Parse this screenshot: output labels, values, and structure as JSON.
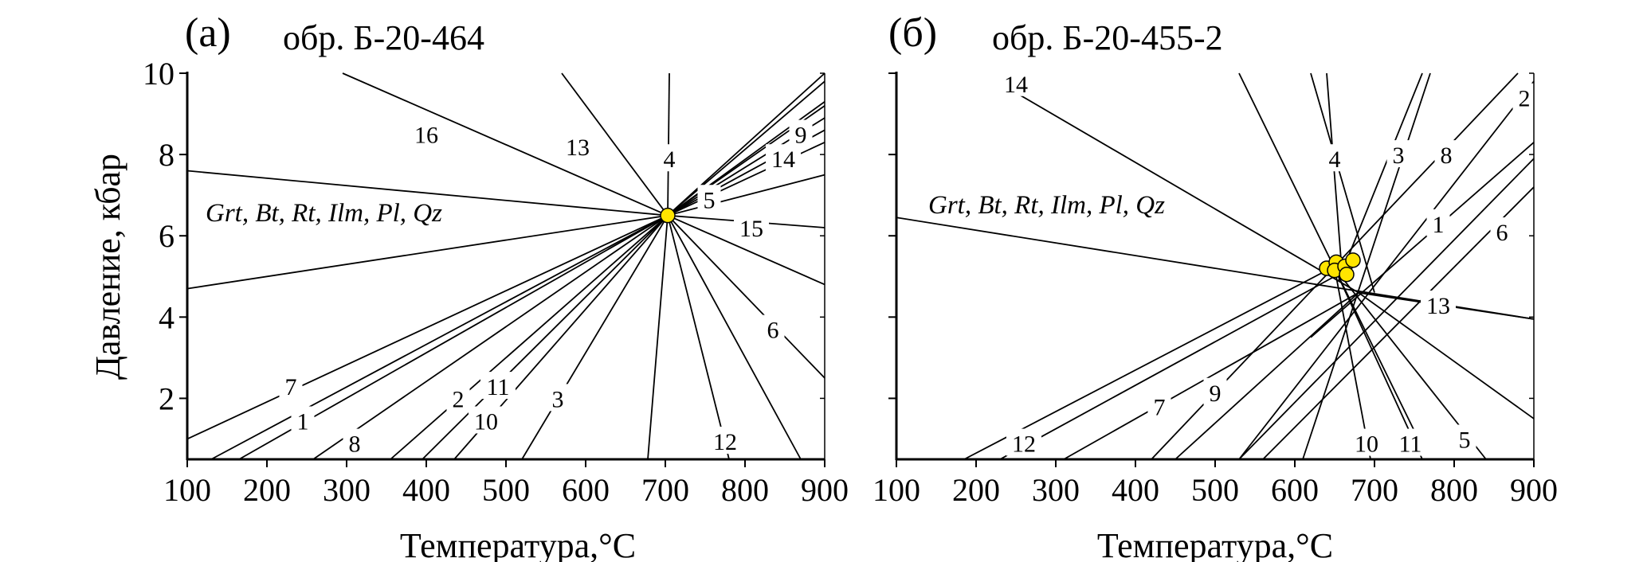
{
  "ylabel": "Давление, кбар",
  "xlabel": "Температура,°C",
  "xticks": [
    "100",
    "200",
    "300",
    "400",
    "500",
    "600",
    "700",
    "800",
    "900"
  ],
  "yticks": [
    "2",
    "4",
    "6",
    "8",
    "10"
  ],
  "point_color": "#ffe500",
  "chart_data": [
    {
      "type": "scatter",
      "panel": "(а)",
      "title": "обр. Б-20-464",
      "assemblage": "Grt, Bt, Rt, Ilm, Pl, Qz",
      "xlim": [
        100,
        900
      ],
      "ylim": [
        0.5,
        10
      ],
      "points": [
        {
          "x": 703,
          "y": 6.5
        }
      ],
      "reactions": [
        {
          "label": "16",
          "from": [
            295,
            10
          ],
          "to": [
            703,
            6.5
          ],
          "lx": 400,
          "ly": 8.5
        },
        {
          "label": "13",
          "from": [
            570,
            10
          ],
          "to": [
            703,
            6.5
          ],
          "lx": 590,
          "ly": 8.2
        },
        {
          "label": "4",
          "from": [
            705,
            10
          ],
          "to": [
            703,
            6.5
          ],
          "lx": 705,
          "ly": 7.9
        },
        {
          "label": "",
          "from": [
            100,
            7.6
          ],
          "to": [
            703,
            6.5
          ]
        },
        {
          "label": "",
          "from": [
            100,
            4.7
          ],
          "to": [
            703,
            6.5
          ]
        },
        {
          "label": "9",
          "from": [
            703,
            6.5
          ],
          "to": [
            900,
            9.3
          ],
          "lx": 870,
          "ly": 8.5
        },
        {
          "label": "",
          "from": [
            703,
            6.5
          ],
          "to": [
            900,
            10
          ]
        },
        {
          "label": "",
          "from": [
            703,
            6.5
          ],
          "to": [
            900,
            9.8
          ]
        },
        {
          "label": "",
          "from": [
            703,
            6.5
          ],
          "to": [
            900,
            9.2
          ]
        },
        {
          "label": "",
          "from": [
            703,
            6.5
          ],
          "to": [
            900,
            8.9
          ]
        },
        {
          "label": "14",
          "from": [
            703,
            6.5
          ],
          "to": [
            900,
            8.6
          ],
          "lx": 848,
          "ly": 7.9
        },
        {
          "label": "",
          "from": [
            703,
            6.5
          ],
          "to": [
            900,
            8.3
          ]
        },
        {
          "label": "5",
          "from": [
            703,
            6.5
          ],
          "to": [
            900,
            7.5
          ],
          "lx": 755,
          "ly": 6.9
        },
        {
          "label": "15",
          "from": [
            703,
            6.5
          ],
          "to": [
            900,
            6.2
          ],
          "lx": 808,
          "ly": 6.2
        },
        {
          "label": "",
          "from": [
            703,
            6.5
          ],
          "to": [
            900,
            4.8
          ]
        },
        {
          "label": "6",
          "from": [
            703,
            6.5
          ],
          "to": [
            900,
            2.5
          ],
          "lx": 835,
          "ly": 3.7
        },
        {
          "label": "",
          "from": [
            703,
            6.5
          ],
          "to": [
            870,
            0.5
          ]
        },
        {
          "label": "12",
          "from": [
            703,
            6.5
          ],
          "to": [
            780,
            0.5
          ],
          "lx": 775,
          "ly": 0.95
        },
        {
          "label": "",
          "from": [
            703,
            6.5
          ],
          "to": [
            678,
            0.5
          ]
        },
        {
          "label": "3",
          "from": [
            703,
            6.5
          ],
          "to": [
            520,
            0.5
          ],
          "lx": 565,
          "ly": 2.0
        },
        {
          "label": "10",
          "from": [
            703,
            6.5
          ],
          "to": [
            435,
            0.5
          ],
          "lx": 475,
          "ly": 1.45
        },
        {
          "label": "11",
          "from": [
            703,
            6.5
          ],
          "to": [
            395,
            0.5
          ],
          "lx": 490,
          "ly": 2.3
        },
        {
          "label": "2",
          "from": [
            703,
            6.5
          ],
          "to": [
            355,
            0.5
          ],
          "lx": 440,
          "ly": 2.0
        },
        {
          "label": "8",
          "from": [
            703,
            6.5
          ],
          "to": [
            258,
            0.5
          ],
          "lx": 310,
          "ly": 0.9
        },
        {
          "label": "1",
          "from": [
            703,
            6.5
          ],
          "to": [
            165,
            0.5
          ],
          "lx": 245,
          "ly": 1.45
        },
        {
          "label": "",
          "from": [
            703,
            6.5
          ],
          "to": [
            130,
            0.5
          ]
        },
        {
          "label": "7",
          "from": [
            703,
            6.5
          ],
          "to": [
            100,
            1.0
          ],
          "lx": 230,
          "ly": 2.3
        }
      ]
    },
    {
      "type": "scatter",
      "panel": "(б)",
      "title": "обр. Б-20-455-2",
      "assemblage": "Grt, Bt, Rt, Ilm, Pl, Qz",
      "xlim": [
        100,
        900
      ],
      "ylim": [
        0.5,
        10
      ],
      "points": [
        {
          "x": 640,
          "y": 5.2
        },
        {
          "x": 652,
          "y": 5.35
        },
        {
          "x": 650,
          "y": 5.15
        },
        {
          "x": 663,
          "y": 5.25
        },
        {
          "x": 673,
          "y": 5.4
        },
        {
          "x": 665,
          "y": 5.05
        }
      ],
      "reactions": [
        {
          "label": "14",
          "from": [
            230,
            9.75
          ],
          "to": [
            680,
            4.6
          ],
          "lx": 250,
          "ly": 9.75
        },
        {
          "label": "",
          "from": [
            100,
            6.45
          ],
          "to": [
            900,
            3.95
          ]
        },
        {
          "label": "13",
          "from": [
            680,
            4.6
          ],
          "to": [
            900,
            3.95
          ],
          "lx": 780,
          "ly": 4.3
        },
        {
          "label": "2",
          "from": [
            530,
            0.5
          ],
          "to": [
            900,
            9.8
          ],
          "lx": 888,
          "ly": 9.4
        },
        {
          "label": "8",
          "from": [
            420,
            0.5
          ],
          "to": [
            880,
            10
          ],
          "lx": 790,
          "ly": 8.0
        },
        {
          "label": "1",
          "from": [
            620,
            3.5
          ],
          "to": [
            900,
            8.3
          ],
          "lx": 780,
          "ly": 6.3
        },
        {
          "label": "6",
          "from": [
            560,
            0.5
          ],
          "to": [
            900,
            7.2
          ],
          "lx": 860,
          "ly": 6.1
        },
        {
          "label": "",
          "from": [
            530,
            0.5
          ],
          "to": [
            900,
            7.9
          ]
        },
        {
          "label": "3",
          "from": [
            610,
            0.5
          ],
          "to": [
            770,
            10
          ],
          "lx": 730,
          "ly": 8.0
        },
        {
          "label": "4",
          "from": [
            640,
            10
          ],
          "to": [
            660,
            4.9
          ],
          "lx": 650,
          "ly": 7.9
        },
        {
          "label": "",
          "from": [
            760,
            10
          ],
          "to": [
            655,
            4.9
          ]
        },
        {
          "label": "",
          "from": [
            620,
            10
          ],
          "to": [
            700,
            4.6
          ]
        },
        {
          "label": "",
          "from": [
            530,
            10
          ],
          "to": [
            750,
            1.2
          ]
        },
        {
          "label": "10",
          "from": [
            650,
            5.2
          ],
          "to": [
            695,
            0.5
          ],
          "lx": 690,
          "ly": 0.9
        },
        {
          "label": "11",
          "from": [
            650,
            5.2
          ],
          "to": [
            760,
            0.5
          ],
          "lx": 745,
          "ly": 0.9
        },
        {
          "label": "5",
          "from": [
            650,
            5.2
          ],
          "to": [
            840,
            0.5
          ],
          "lx": 813,
          "ly": 1.0
        },
        {
          "label": "",
          "from": [
            680,
            4.6
          ],
          "to": [
            900,
            1.5
          ]
        },
        {
          "label": "12",
          "from": [
            185,
            0.5
          ],
          "to": [
            650,
            5.25
          ],
          "lx": 260,
          "ly": 0.9
        },
        {
          "label": "7",
          "from": [
            310,
            0.5
          ],
          "to": [
            680,
            4.6
          ],
          "lx": 430,
          "ly": 1.8
        },
        {
          "label": "9",
          "from": [
            450,
            0.5
          ],
          "to": [
            680,
            4.6
          ],
          "lx": 500,
          "ly": 2.15
        },
        {
          "label": "",
          "from": [
            230,
            0.5
          ],
          "to": [
            650,
            5.0
          ]
        }
      ]
    }
  ]
}
